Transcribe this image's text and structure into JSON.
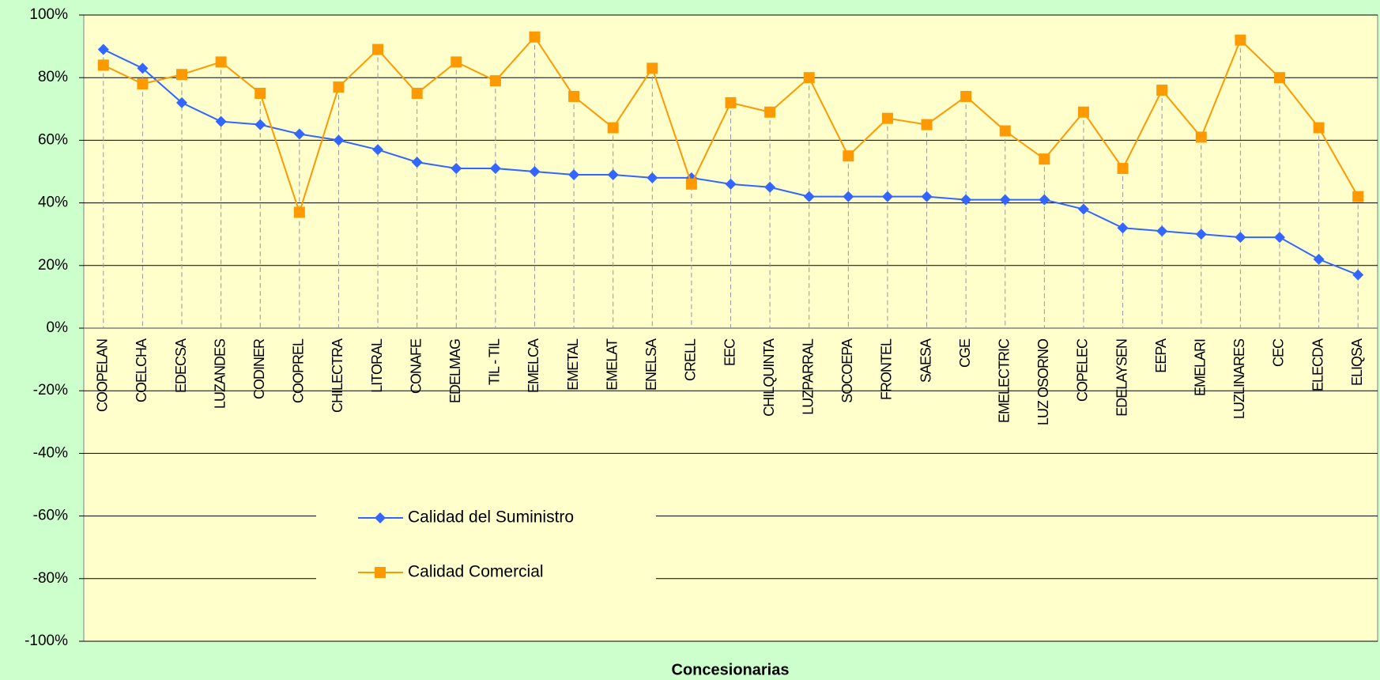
{
  "chart_data": {
    "type": "line",
    "x_label": "Concesionarias",
    "categories": [
      "COOPELAN",
      "COELCHA",
      "EDECSA",
      "LUZANDES",
      "CODINER",
      "COOPREL",
      "CHILECTRA",
      "LITORAL",
      "CONAFE",
      "EDELMAG",
      "TIL - TIL",
      "EMELCA",
      "EMETAL",
      "EMELAT",
      "ENELSA",
      "CRELL",
      "EEC",
      "CHILQUINTA",
      "LUZPARRAL",
      "SOCOEPA",
      "FRONTEL",
      "SAESA",
      "CGE",
      "EMELECTRIC",
      "LUZ OSORNO",
      "COPELEC",
      "EDELAYSEN",
      "EEPA",
      "EMELARI",
      "LUZLINARES",
      "CEC",
      "ELECDA",
      "ELIQSA"
    ],
    "series": [
      {
        "name": "Calidad del Suministro",
        "color": "#3366ff",
        "marker": "diamond",
        "values": [
          89,
          83,
          72,
          66,
          65,
          62,
          60,
          57,
          53,
          51,
          51,
          50,
          49,
          49,
          48,
          48,
          46,
          45,
          42,
          42,
          42,
          42,
          41,
          41,
          41,
          38,
          32,
          31,
          30,
          29,
          29,
          22,
          17
        ]
      },
      {
        "name": "Calidad Comercial",
        "color": "#ff9900",
        "marker": "square",
        "values": [
          84,
          78,
          81,
          85,
          75,
          37,
          77,
          89,
          75,
          85,
          79,
          93,
          74,
          64,
          83,
          46,
          72,
          69,
          80,
          55,
          67,
          65,
          74,
          63,
          54,
          69,
          51,
          76,
          61,
          92,
          80,
          64,
          42
        ]
      }
    ],
    "ylim": [
      -100,
      100
    ],
    "yticks": [
      {
        "value": -100,
        "label": "-100%"
      },
      {
        "value": -80,
        "label": "-80%"
      },
      {
        "value": -60,
        "label": "-60%"
      },
      {
        "value": -40,
        "label": "-40%"
      },
      {
        "value": -20,
        "label": "-20%"
      },
      {
        "value": 0,
        "label": "0%"
      },
      {
        "value": 20,
        "label": "20%"
      },
      {
        "value": 40,
        "label": "40%"
      },
      {
        "value": 60,
        "label": "60%"
      },
      {
        "value": 80,
        "label": "80%"
      },
      {
        "value": 100,
        "label": "100%"
      }
    ],
    "grid": true,
    "drop_lines": true
  }
}
